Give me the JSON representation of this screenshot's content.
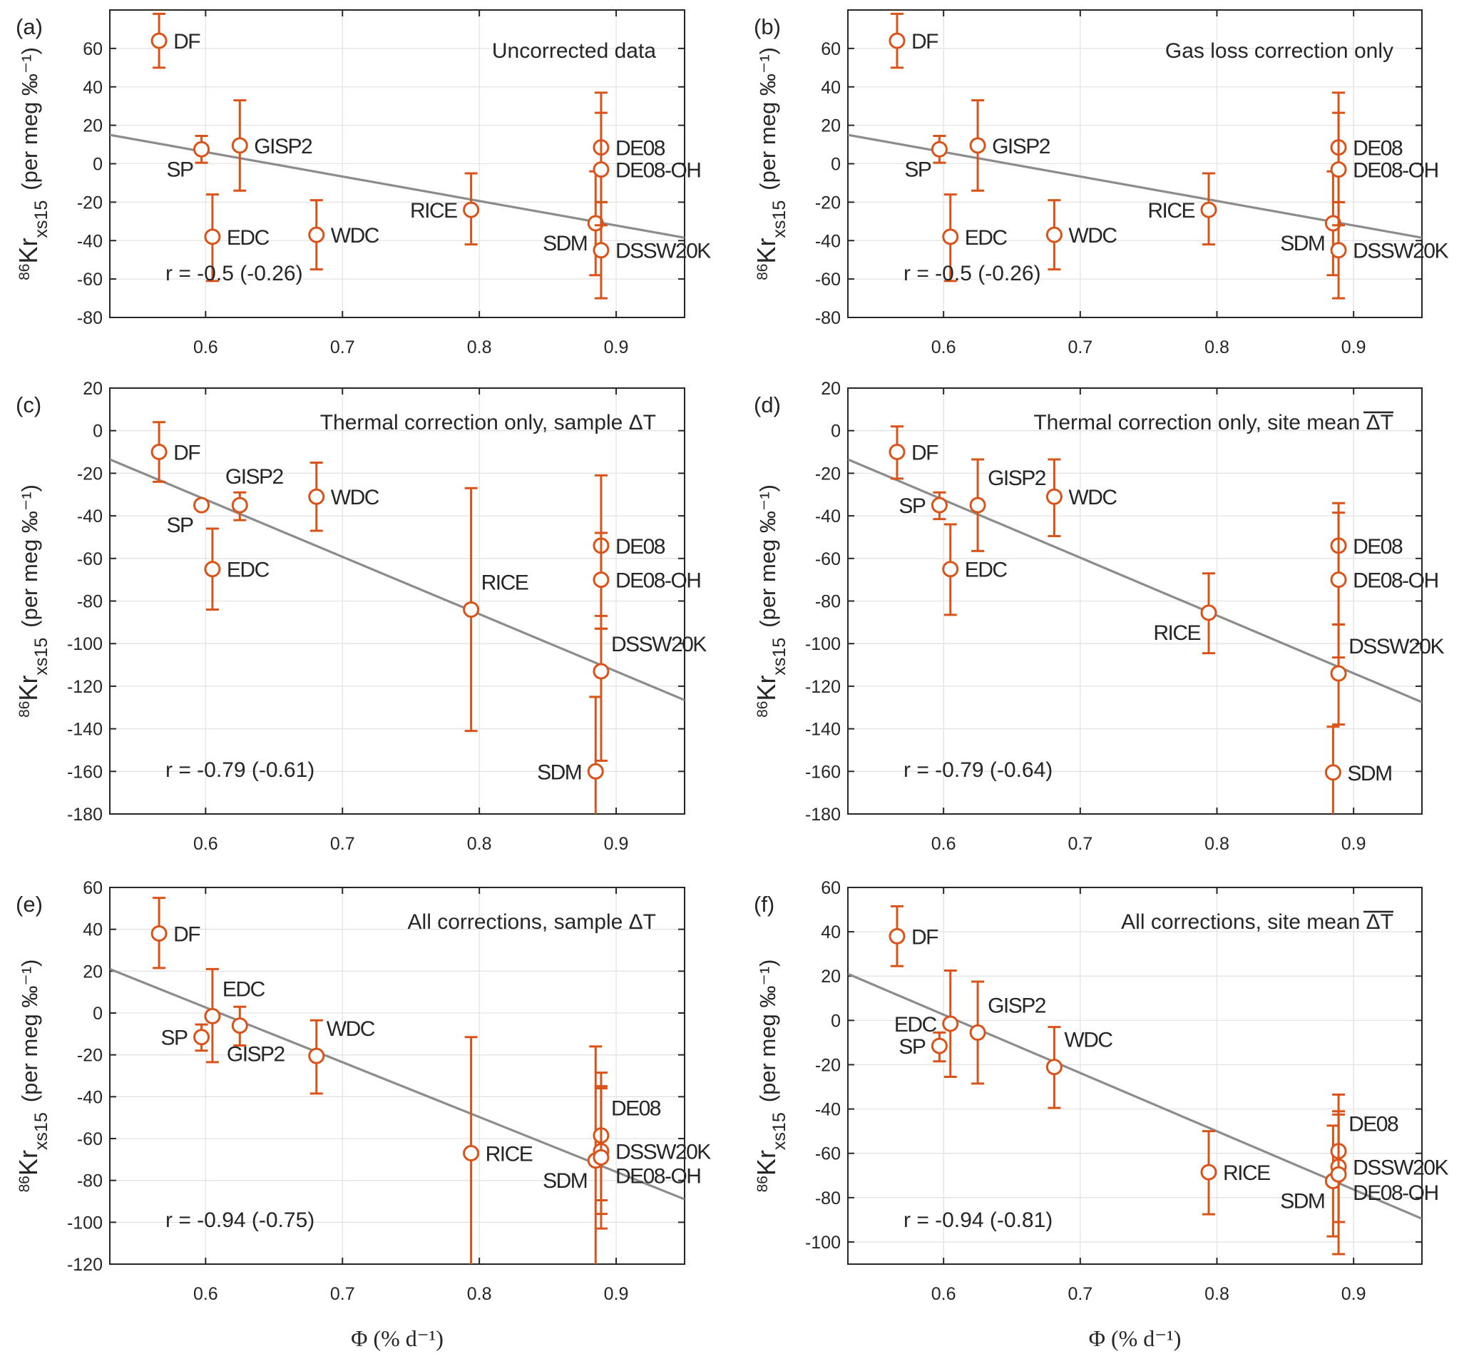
{
  "figure": {
    "xlabel": "Φ (% d⁻¹)",
    "ylabel_main": "Kr",
    "ylabel_sup": "86",
    "ylabel_sub": "xs15",
    "ylabel_units": "(per meg ‰⁻¹)",
    "colors": {
      "data": "#d95319",
      "fit": "#8c8c8c",
      "axis": "#262626",
      "grid": "#e3e3e3"
    }
  },
  "chart_data": [
    {
      "type": "scatter",
      "panel": "(a)",
      "title": "Uncorrected data",
      "xlabel": "",
      "ylabel": "86Kr xs15 (per meg ‰-1)",
      "xlim": [
        0.53,
        0.95
      ],
      "ylim": [
        -80,
        80
      ],
      "xticks": [
        0.6,
        0.7,
        0.8,
        0.9
      ],
      "yticks": [
        -80,
        -60,
        -40,
        -20,
        0,
        20,
        40,
        60
      ],
      "grid": true,
      "fit_line": {
        "x": [
          0.53,
          0.95
        ],
        "y": [
          15,
          -38.5
        ]
      },
      "r_text": "r = -0.5 (-0.26)",
      "points": [
        {
          "site": "DF",
          "x": 0.566,
          "y": 64,
          "lo": 50,
          "hi": 78,
          "label_pos": "right"
        },
        {
          "site": "SP",
          "x": 0.597,
          "y": 7.5,
          "lo": 0.5,
          "hi": 14.5,
          "label_pos": "below-left"
        },
        {
          "site": "GISP2",
          "x": 0.625,
          "y": 9.5,
          "lo": -14,
          "hi": 33,
          "label_pos": "right"
        },
        {
          "site": "EDC",
          "x": 0.605,
          "y": -38,
          "lo": -61,
          "hi": -16,
          "label_pos": "right"
        },
        {
          "site": "WDC",
          "x": 0.681,
          "y": -37,
          "lo": -55,
          "hi": -19,
          "label_pos": "right"
        },
        {
          "site": "RICE",
          "x": 0.794,
          "y": -24,
          "lo": -42,
          "hi": -5,
          "label_pos": "left"
        },
        {
          "site": "SDM",
          "x": 0.885,
          "y": -31,
          "lo": -58,
          "hi": -4,
          "label_pos": "below-left"
        },
        {
          "site": "DE08",
          "x": 0.889,
          "y": 8.5,
          "lo": -20,
          "hi": 37,
          "label_pos": "right"
        },
        {
          "site": "DE08-OH",
          "x": 0.889,
          "y": -3,
          "lo": -32,
          "hi": 26.5,
          "label_pos": "right"
        },
        {
          "site": "DSSW20K",
          "x": 0.889,
          "y": -45,
          "lo": -70,
          "hi": -20,
          "label_pos": "right"
        }
      ]
    },
    {
      "type": "scatter",
      "panel": "(b)",
      "title": "Gas loss correction only",
      "xlabel": "",
      "ylabel": "86Kr xs15 (per meg ‰-1)",
      "xlim": [
        0.53,
        0.95
      ],
      "ylim": [
        -80,
        80
      ],
      "xticks": [
        0.6,
        0.7,
        0.8,
        0.9
      ],
      "yticks": [
        -80,
        -60,
        -40,
        -20,
        0,
        20,
        40,
        60
      ],
      "grid": true,
      "fit_line": {
        "x": [
          0.53,
          0.95
        ],
        "y": [
          15,
          -38.5
        ]
      },
      "r_text": "r = -0.5 (-0.26)",
      "points": [
        {
          "site": "DF",
          "x": 0.566,
          "y": 64,
          "lo": 50,
          "hi": 78,
          "label_pos": "right"
        },
        {
          "site": "SP",
          "x": 0.597,
          "y": 7.5,
          "lo": 0.5,
          "hi": 14.5,
          "label_pos": "below-left"
        },
        {
          "site": "GISP2",
          "x": 0.625,
          "y": 9.5,
          "lo": -14,
          "hi": 33,
          "label_pos": "right"
        },
        {
          "site": "EDC",
          "x": 0.605,
          "y": -38,
          "lo": -61,
          "hi": -16,
          "label_pos": "right"
        },
        {
          "site": "WDC",
          "x": 0.681,
          "y": -37,
          "lo": -55,
          "hi": -19,
          "label_pos": "right"
        },
        {
          "site": "RICE",
          "x": 0.794,
          "y": -24,
          "lo": -42,
          "hi": -5,
          "label_pos": "left"
        },
        {
          "site": "SDM",
          "x": 0.885,
          "y": -31,
          "lo": -58,
          "hi": -4,
          "label_pos": "below-left"
        },
        {
          "site": "DE08",
          "x": 0.889,
          "y": 8.5,
          "lo": -20,
          "hi": 37,
          "label_pos": "right"
        },
        {
          "site": "DE08-OH",
          "x": 0.889,
          "y": -3,
          "lo": -32,
          "hi": 26.5,
          "label_pos": "right"
        },
        {
          "site": "DSSW20K",
          "x": 0.889,
          "y": -45,
          "lo": -70,
          "hi": -20,
          "label_pos": "right"
        }
      ]
    },
    {
      "type": "scatter",
      "panel": "(c)",
      "title": "Thermal correction only, sample ΔT",
      "title_overline": false,
      "xlabel": "",
      "ylabel": "86Kr xs15 (per meg ‰-1)",
      "xlim": [
        0.53,
        0.95
      ],
      "ylim": [
        -180,
        20
      ],
      "xticks": [
        0.6,
        0.7,
        0.8,
        0.9
      ],
      "yticks": [
        -180,
        -160,
        -140,
        -120,
        -100,
        -80,
        -60,
        -40,
        -20,
        0,
        20
      ],
      "grid": true,
      "fit_line": {
        "x": [
          0.53,
          0.95
        ],
        "y": [
          -13.5,
          -126.5
        ]
      },
      "r_text": "r = -0.79 (-0.61)",
      "points": [
        {
          "site": "DF",
          "x": 0.566,
          "y": -10,
          "lo": -24,
          "hi": 4,
          "label_pos": "right"
        },
        {
          "site": "SP",
          "x": 0.597,
          "y": -35,
          "lo": -35,
          "hi": -35,
          "label_pos": "below-left"
        },
        {
          "site": "GISP2",
          "x": 0.625,
          "y": -35,
          "lo": -42,
          "hi": -29,
          "label_pos": "above"
        },
        {
          "site": "EDC",
          "x": 0.605,
          "y": -65,
          "lo": -84,
          "hi": -46,
          "label_pos": "right"
        },
        {
          "site": "WDC",
          "x": 0.681,
          "y": -31,
          "lo": -47,
          "hi": -15,
          "label_pos": "right"
        },
        {
          "site": "RICE",
          "x": 0.794,
          "y": -84,
          "lo": -141,
          "hi": -27,
          "label_pos": "above-right"
        },
        {
          "site": "SDM",
          "x": 0.885,
          "y": -160,
          "lo": -195,
          "hi": -125,
          "label_pos": "left"
        },
        {
          "site": "DE08",
          "x": 0.889,
          "y": -54,
          "lo": -87,
          "hi": -21,
          "label_pos": "right"
        },
        {
          "site": "DE08-OH",
          "x": 0.889,
          "y": -70,
          "lo": -93,
          "hi": -48,
          "label_pos": "right"
        },
        {
          "site": "DSSW20K",
          "x": 0.889,
          "y": -113,
          "lo": -155,
          "hi": -93,
          "label_pos": "above-right"
        }
      ]
    },
    {
      "type": "scatter",
      "panel": "(d)",
      "title": "Thermal correction only, site mean ΔT",
      "title_overline": true,
      "xlabel": "",
      "ylabel": "86Kr xs15 (per meg ‰-1)",
      "xlim": [
        0.53,
        0.95
      ],
      "ylim": [
        -180,
        20
      ],
      "xticks": [
        0.6,
        0.7,
        0.8,
        0.9
      ],
      "yticks": [
        -180,
        -160,
        -140,
        -120,
        -100,
        -80,
        -60,
        -40,
        -20,
        0,
        20
      ],
      "grid": true,
      "fit_line": {
        "x": [
          0.53,
          0.95
        ],
        "y": [
          -13.5,
          -127.5
        ]
      },
      "r_text": "r = -0.79 (-0.64)",
      "points": [
        {
          "site": "DF",
          "x": 0.566,
          "y": -10,
          "lo": -22.5,
          "hi": 2,
          "label_pos": "right"
        },
        {
          "site": "SP",
          "x": 0.597,
          "y": -35,
          "lo": -41.5,
          "hi": -29,
          "label_pos": "left"
        },
        {
          "site": "GISP2",
          "x": 0.625,
          "y": -35,
          "lo": -56.5,
          "hi": -13.5,
          "label_pos": "above-right"
        },
        {
          "site": "EDC",
          "x": 0.605,
          "y": -65,
          "lo": -86.5,
          "hi": -44,
          "label_pos": "right"
        },
        {
          "site": "WDC",
          "x": 0.681,
          "y": -31,
          "lo": -49.5,
          "hi": -13.5,
          "label_pos": "right"
        },
        {
          "site": "RICE",
          "x": 0.794,
          "y": -85.5,
          "lo": -104.5,
          "hi": -67,
          "label_pos": "below-left"
        },
        {
          "site": "SDM",
          "x": 0.885,
          "y": -160.5,
          "lo": -195,
          "hi": -139,
          "label_pos": "right"
        },
        {
          "site": "DE08",
          "x": 0.889,
          "y": -54,
          "lo": -91,
          "hi": -34,
          "label_pos": "right"
        },
        {
          "site": "DE08-OH",
          "x": 0.889,
          "y": -70,
          "lo": -106.5,
          "hi": -38.5,
          "label_pos": "right"
        },
        {
          "site": "DSSW20K",
          "x": 0.889,
          "y": -114,
          "lo": -138,
          "hi": -91,
          "label_pos": "above-right"
        }
      ]
    },
    {
      "type": "scatter",
      "panel": "(e)",
      "title": "All corrections, sample ΔT",
      "title_overline": false,
      "xlabel": "Φ (% d-1)",
      "ylabel": "86Kr xs15 (per meg ‰-1)",
      "xlim": [
        0.53,
        0.95
      ],
      "ylim": [
        -120,
        60
      ],
      "xticks": [
        0.6,
        0.7,
        0.8,
        0.9
      ],
      "yticks": [
        -120,
        -100,
        -80,
        -60,
        -40,
        -20,
        0,
        20,
        40,
        60
      ],
      "grid": true,
      "fit_line": {
        "x": [
          0.53,
          0.95
        ],
        "y": [
          21,
          -89
        ]
      },
      "r_text": "r = -0.94 (-0.75)",
      "points": [
        {
          "site": "DF",
          "x": 0.566,
          "y": 38,
          "lo": 21.5,
          "hi": 55,
          "label_pos": "right"
        },
        {
          "site": "SP",
          "x": 0.597,
          "y": -11.5,
          "lo": -18,
          "hi": -5.5,
          "label_pos": "left"
        },
        {
          "site": "EDC",
          "x": 0.605,
          "y": -1.5,
          "lo": -23.5,
          "hi": 21,
          "label_pos": "above-right"
        },
        {
          "site": "GISP2",
          "x": 0.625,
          "y": -6,
          "lo": -15.5,
          "hi": 3,
          "label_pos": "below"
        },
        {
          "site": "WDC",
          "x": 0.681,
          "y": -20.5,
          "lo": -38.5,
          "hi": -3.5,
          "label_pos": "above-right"
        },
        {
          "site": "RICE",
          "x": 0.794,
          "y": -67,
          "lo": -125,
          "hi": -11.5,
          "label_pos": "right"
        },
        {
          "site": "SDM",
          "x": 0.885,
          "y": -70.5,
          "lo": -125,
          "hi": -16,
          "label_pos": "below-left"
        },
        {
          "site": "DE08",
          "x": 0.889,
          "y": -58.5,
          "lo": -89.5,
          "hi": -28.5,
          "label_pos": "above-right"
        },
        {
          "site": "DSSW20K",
          "x": 0.889,
          "y": -66,
          "lo": -96,
          "hi": -36,
          "label_pos": "right"
        },
        {
          "site": "DE08-OH",
          "x": 0.889,
          "y": -69,
          "lo": -103,
          "hi": -35,
          "label_pos": "below-right"
        }
      ]
    },
    {
      "type": "scatter",
      "panel": "(f)",
      "title": "All corrections, site mean ΔT",
      "title_overline": true,
      "xlabel": "Φ (% d-1)",
      "ylabel": "86Kr xs15 (per meg ‰-1)",
      "xlim": [
        0.53,
        0.95
      ],
      "ylim": [
        -110,
        60
      ],
      "xticks": [
        0.6,
        0.7,
        0.8,
        0.9
      ],
      "yticks": [
        -100,
        -80,
        -60,
        -40,
        -20,
        0,
        20,
        40,
        60
      ],
      "grid": true,
      "fit_line": {
        "x": [
          0.53,
          0.95
        ],
        "y": [
          21,
          -89.5
        ]
      },
      "r_text": "r = -0.94 (-0.81)",
      "points": [
        {
          "site": "DF",
          "x": 0.566,
          "y": 38,
          "lo": 24.5,
          "hi": 51.5,
          "label_pos": "right"
        },
        {
          "site": "SP",
          "x": 0.597,
          "y": -11.5,
          "lo": -18.5,
          "hi": -5.5,
          "label_pos": "left"
        },
        {
          "site": "EDC",
          "x": 0.605,
          "y": -1.5,
          "lo": -25.5,
          "hi": 22.5,
          "label_pos": "left"
        },
        {
          "site": "GISP2",
          "x": 0.625,
          "y": -5.5,
          "lo": -28.5,
          "hi": 17.5,
          "label_pos": "above-right"
        },
        {
          "site": "WDC",
          "x": 0.681,
          "y": -21,
          "lo": -39.5,
          "hi": -3,
          "label_pos": "above-right"
        },
        {
          "site": "RICE",
          "x": 0.794,
          "y": -68.5,
          "lo": -87.5,
          "hi": -50,
          "label_pos": "right"
        },
        {
          "site": "SDM",
          "x": 0.885,
          "y": -72.5,
          "lo": -97.5,
          "hi": -47.5,
          "label_pos": "below-left"
        },
        {
          "site": "DE08",
          "x": 0.889,
          "y": -59,
          "lo": -91,
          "hi": -33.5,
          "label_pos": "above-right"
        },
        {
          "site": "DSSW20K",
          "x": 0.889,
          "y": -66,
          "lo": -91,
          "hi": -41,
          "label_pos": "right"
        },
        {
          "site": "DE08-OH",
          "x": 0.889,
          "y": -69.5,
          "lo": -105.5,
          "hi": -42.5,
          "label_pos": "below-right"
        }
      ]
    }
  ]
}
